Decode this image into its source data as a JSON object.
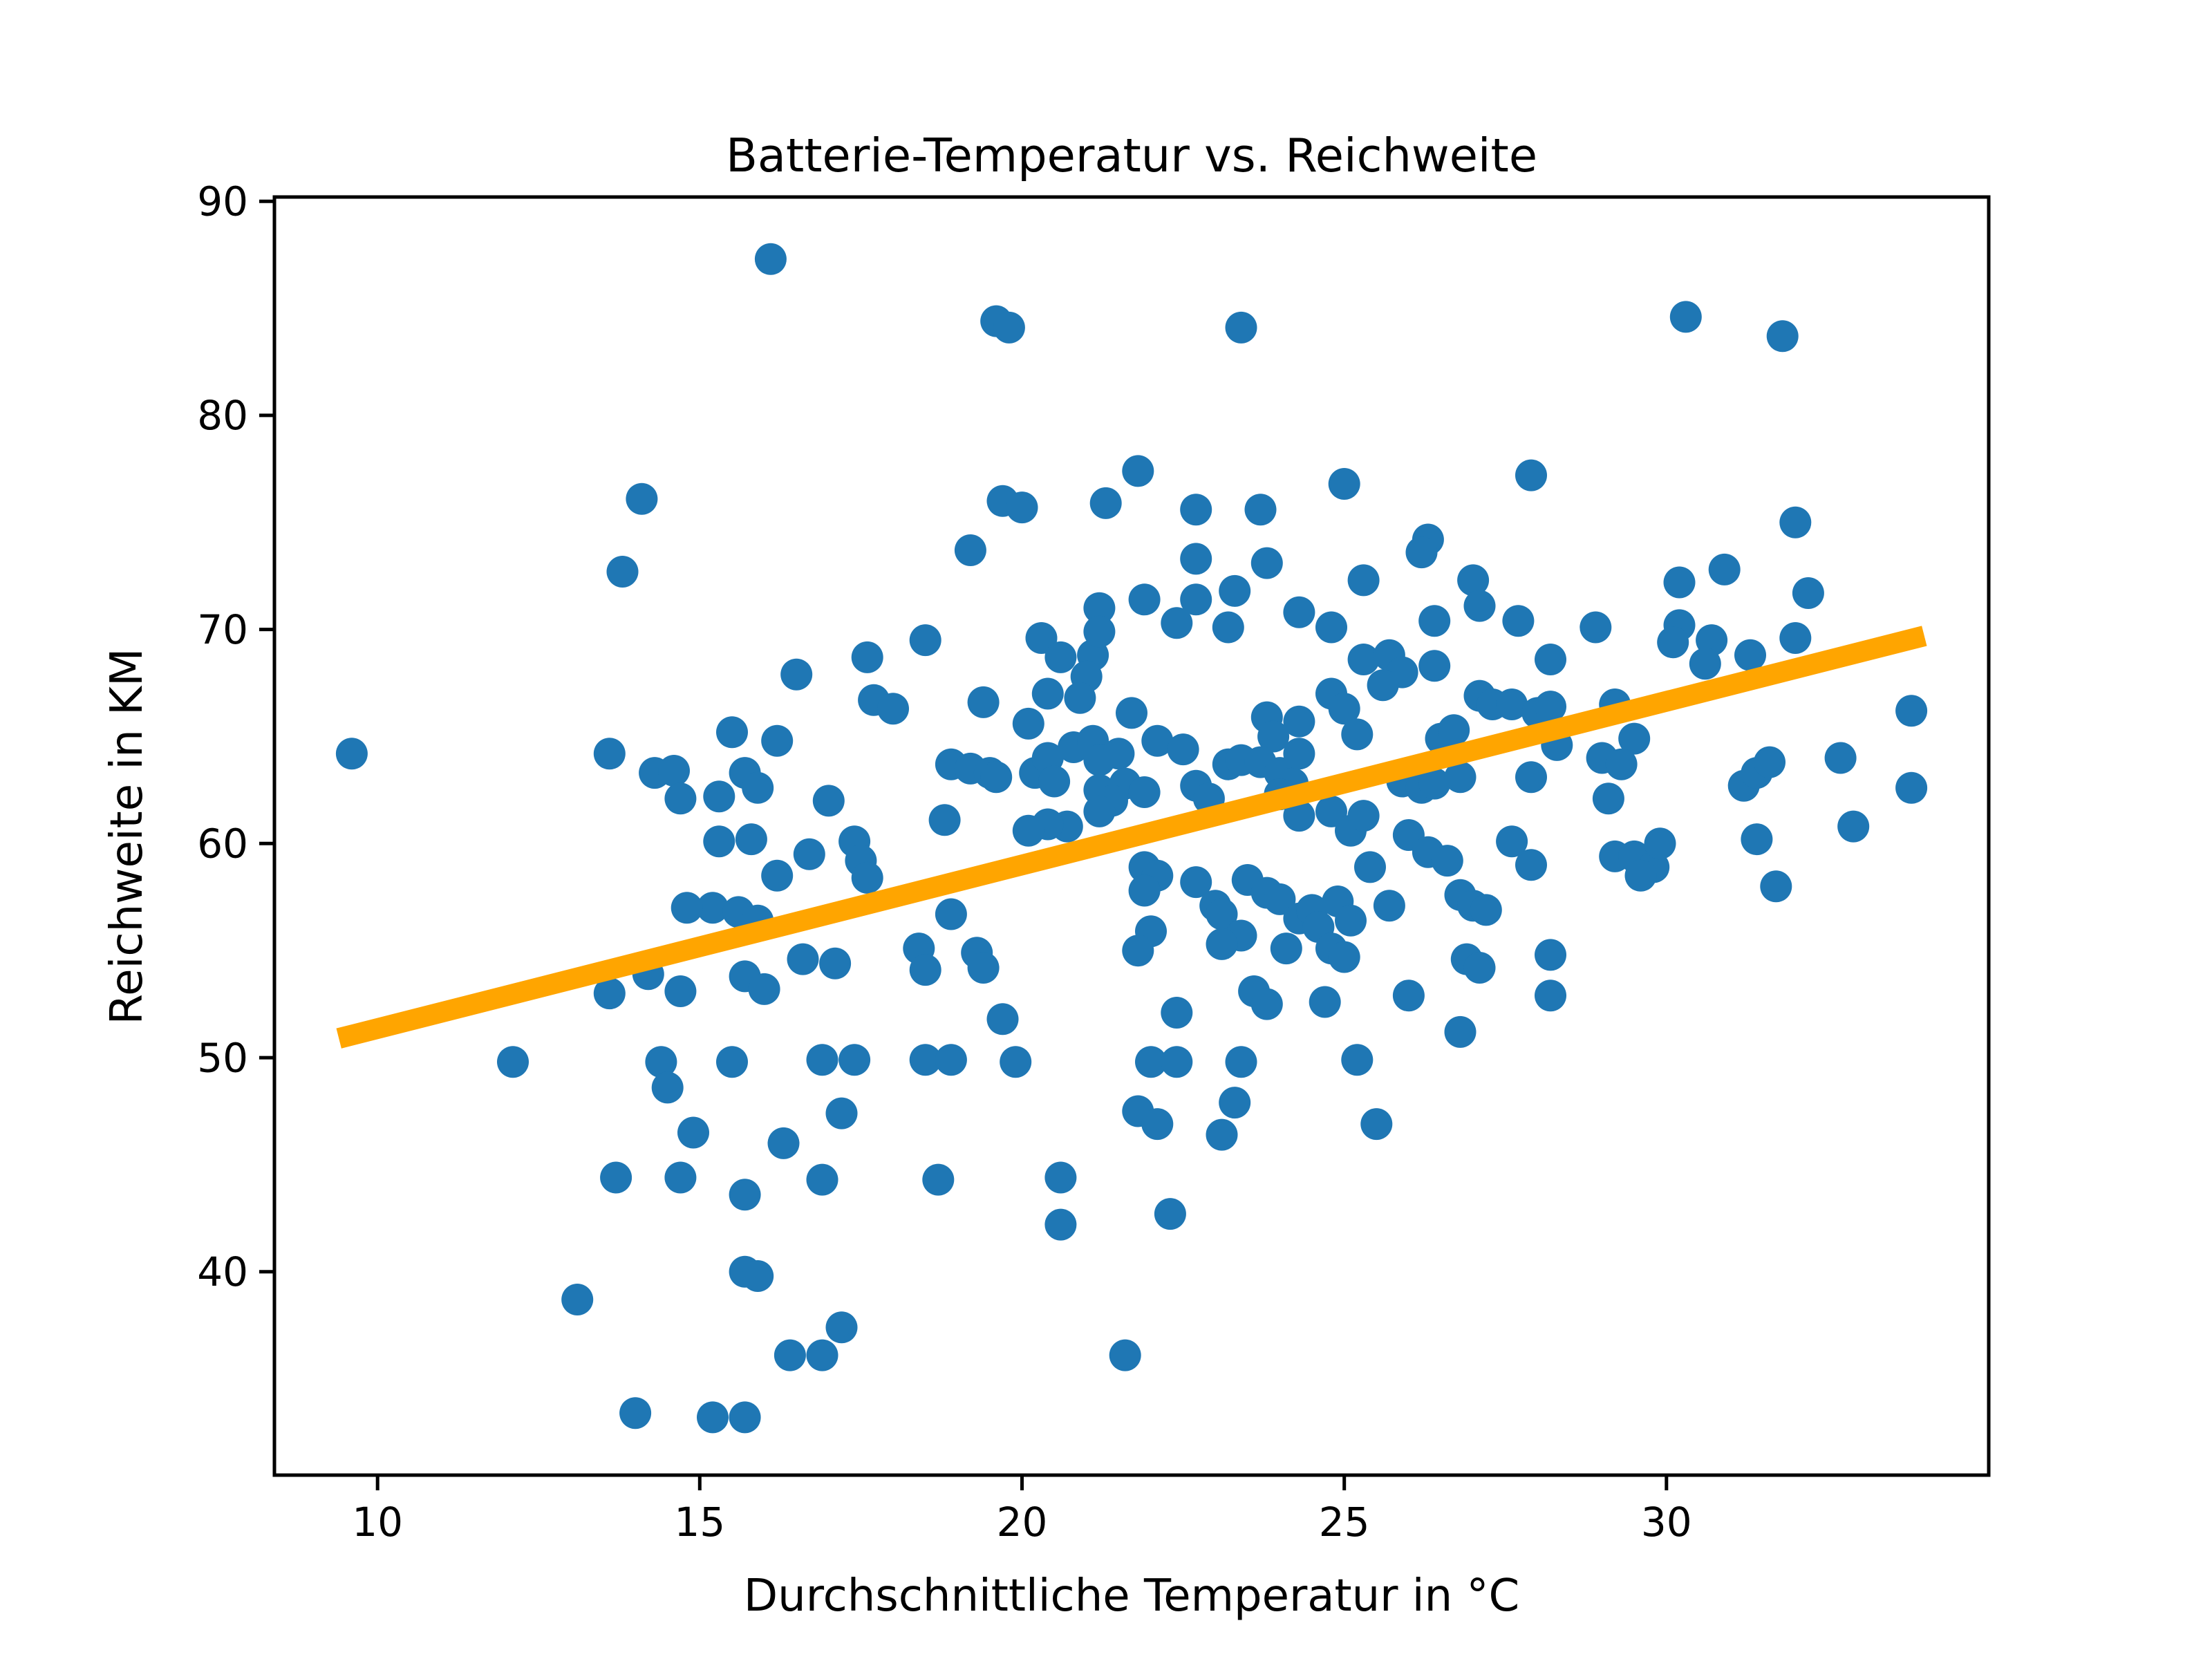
{
  "chart_data": {
    "type": "scatter",
    "title": "Batterie-Temperatur vs. Reichweite",
    "xlabel": "Durchschnittliche Temperatur in °C",
    "ylabel": "Reichweite in KM",
    "xlim": [
      8.4,
      35.0
    ],
    "ylim": [
      30.5,
      90.2
    ],
    "xticks": [
      10,
      15,
      20,
      25,
      30
    ],
    "yticks": [
      40,
      50,
      60,
      70,
      80,
      90
    ],
    "grid": false,
    "legend": "none",
    "marker_color": "#1f77b4",
    "trend_line": {
      "color": "#FFA500",
      "x1": 9.4,
      "y1": 50.9,
      "x2": 34.0,
      "y2": 69.7
    },
    "points": [
      [
        16.1,
        87.3
      ],
      [
        19.6,
        84.4
      ],
      [
        19.8,
        84.1
      ],
      [
        23.4,
        84.1
      ],
      [
        30.3,
        84.6
      ],
      [
        31.8,
        83.7
      ],
      [
        14.1,
        76.1
      ],
      [
        13.8,
        72.7
      ],
      [
        19.7,
        76.0
      ],
      [
        20.0,
        75.7
      ],
      [
        21.3,
        75.9
      ],
      [
        19.2,
        73.7
      ],
      [
        21.2,
        71.0
      ],
      [
        21.8,
        77.4
      ],
      [
        22.7,
        75.6
      ],
      [
        23.7,
        75.6
      ],
      [
        25.0,
        76.8
      ],
      [
        27.9,
        77.2
      ],
      [
        26.3,
        74.2
      ],
      [
        26.2,
        73.6
      ],
      [
        22.7,
        73.3
      ],
      [
        23.8,
        73.1
      ],
      [
        25.3,
        72.3
      ],
      [
        27.0,
        72.3
      ],
      [
        23.3,
        71.8
      ],
      [
        21.9,
        71.4
      ],
      [
        22.7,
        71.4
      ],
      [
        27.1,
        71.1
      ],
      [
        24.3,
        70.8
      ],
      [
        26.4,
        70.4
      ],
      [
        27.7,
        70.4
      ],
      [
        22.4,
        70.3
      ],
      [
        23.2,
        70.1
      ],
      [
        24.8,
        70.1
      ],
      [
        32.0,
        75.0
      ],
      [
        30.9,
        72.8
      ],
      [
        30.2,
        72.2
      ],
      [
        32.2,
        71.7
      ],
      [
        28.9,
        70.1
      ],
      [
        30.2,
        70.2
      ],
      [
        30.7,
        69.5
      ],
      [
        30.6,
        68.4
      ],
      [
        31.3,
        68.8
      ],
      [
        32.0,
        69.6
      ],
      [
        30.1,
        69.4
      ],
      [
        16.5,
        67.9
      ],
      [
        17.6,
        68.7
      ],
      [
        18.5,
        69.5
      ],
      [
        20.3,
        69.6
      ],
      [
        20.6,
        68.7
      ],
      [
        21.1,
        68.8
      ],
      [
        21.2,
        69.9
      ],
      [
        21.0,
        67.8
      ],
      [
        20.9,
        66.8
      ],
      [
        20.4,
        67.0
      ],
      [
        17.7,
        66.7
      ],
      [
        18.0,
        66.3
      ],
      [
        19.4,
        66.6
      ],
      [
        25.3,
        68.6
      ],
      [
        25.7,
        68.8
      ],
      [
        25.9,
        68.0
      ],
      [
        25.6,
        67.4
      ],
      [
        24.8,
        67.0
      ],
      [
        25.0,
        66.3
      ],
      [
        27.1,
        66.9
      ],
      [
        27.3,
        66.5
      ],
      [
        27.6,
        66.5
      ],
      [
        28.0,
        66.1
      ],
      [
        26.4,
        68.3
      ],
      [
        28.2,
        68.6
      ],
      [
        21.7,
        66.1
      ],
      [
        29.2,
        66.5
      ],
      [
        28.2,
        66.4
      ],
      [
        33.8,
        66.2
      ],
      [
        9.6,
        64.2
      ],
      [
        13.6,
        64.2
      ],
      [
        14.3,
        63.3
      ],
      [
        14.6,
        63.4
      ],
      [
        14.7,
        62.1
      ],
      [
        20.1,
        65.6
      ],
      [
        15.5,
        65.2
      ],
      [
        16.2,
        64.8
      ],
      [
        18.9,
        63.7
      ],
      [
        19.2,
        63.5
      ],
      [
        19.5,
        63.3
      ],
      [
        19.6,
        63.1
      ],
      [
        15.7,
        63.3
      ],
      [
        15.9,
        62.6
      ],
      [
        20.2,
        63.3
      ],
      [
        20.4,
        64.0
      ],
      [
        20.5,
        62.9
      ],
      [
        20.8,
        64.5
      ],
      [
        21.1,
        64.8
      ],
      [
        21.2,
        63.9
      ],
      [
        21.5,
        64.2
      ],
      [
        15.3,
        62.2
      ],
      [
        22.1,
        64.8
      ],
      [
        22.5,
        64.4
      ],
      [
        23.8,
        65.9
      ],
      [
        23.9,
        65.0
      ],
      [
        24.3,
        65.7
      ],
      [
        25.2,
        65.1
      ],
      [
        26.5,
        64.9
      ],
      [
        26.7,
        65.3
      ],
      [
        21.6,
        62.8
      ],
      [
        21.9,
        62.4
      ],
      [
        22.7,
        62.7
      ],
      [
        22.9,
        62.1
      ],
      [
        23.2,
        63.7
      ],
      [
        23.4,
        63.9
      ],
      [
        23.7,
        63.8
      ],
      [
        24.0,
        63.3
      ],
      [
        24.2,
        62.8
      ],
      [
        24.0,
        62.3
      ],
      [
        24.3,
        64.2
      ],
      [
        25.9,
        62.9
      ],
      [
        26.2,
        62.6
      ],
      [
        26.4,
        62.8
      ],
      [
        26.8,
        63.1
      ],
      [
        27.9,
        63.1
      ],
      [
        28.3,
        64.6
      ],
      [
        21.2,
        62.5
      ],
      [
        29.5,
        64.9
      ],
      [
        29.0,
        64.0
      ],
      [
        29.3,
        63.7
      ],
      [
        29.1,
        62.1
      ],
      [
        32.7,
        64.0
      ],
      [
        33.8,
        62.6
      ],
      [
        31.2,
        62.7
      ],
      [
        31.4,
        63.3
      ],
      [
        31.6,
        63.8
      ],
      [
        17.0,
        62.0
      ],
      [
        18.8,
        61.1
      ],
      [
        15.3,
        60.1
      ],
      [
        15.8,
        60.2
      ],
      [
        16.7,
        59.5
      ],
      [
        17.4,
        60.1
      ],
      [
        17.5,
        59.2
      ],
      [
        20.7,
        60.8
      ],
      [
        20.4,
        60.9
      ],
      [
        20.1,
        60.6
      ],
      [
        21.4,
        62.0
      ],
      [
        21.2,
        61.5
      ],
      [
        24.8,
        61.5
      ],
      [
        25.1,
        60.6
      ],
      [
        25.3,
        61.3
      ],
      [
        24.3,
        61.3
      ],
      [
        26.0,
        60.4
      ],
      [
        26.3,
        59.6
      ],
      [
        26.6,
        59.2
      ],
      [
        27.6,
        60.1
      ],
      [
        27.9,
        59.0
      ],
      [
        29.2,
        59.4
      ],
      [
        29.5,
        59.4
      ],
      [
        29.8,
        58.9
      ],
      [
        29.9,
        60.0
      ],
      [
        31.4,
        60.2
      ],
      [
        32.9,
        60.8
      ],
      [
        16.2,
        58.5
      ],
      [
        17.6,
        58.4
      ],
      [
        18.9,
        56.7
      ],
      [
        15.2,
        57.0
      ],
      [
        15.6,
        56.8
      ],
      [
        15.9,
        56.4
      ],
      [
        14.8,
        57.0
      ],
      [
        21.9,
        58.9
      ],
      [
        22.1,
        58.5
      ],
      [
        21.9,
        57.8
      ],
      [
        22.7,
        58.2
      ],
      [
        23.5,
        58.3
      ],
      [
        23.8,
        57.7
      ],
      [
        24.0,
        57.4
      ],
      [
        23.0,
        57.1
      ],
      [
        23.1,
        56.7
      ],
      [
        24.3,
        56.5
      ],
      [
        24.5,
        56.9
      ],
      [
        24.6,
        56.1
      ],
      [
        24.9,
        57.3
      ],
      [
        25.1,
        56.4
      ],
      [
        25.4,
        58.9
      ],
      [
        25.7,
        57.1
      ],
      [
        26.8,
        57.6
      ],
      [
        27.0,
        57.1
      ],
      [
        27.2,
        56.9
      ],
      [
        29.6,
        58.5
      ],
      [
        31.7,
        58.0
      ],
      [
        14.2,
        53.9
      ],
      [
        13.6,
        53.0
      ],
      [
        14.7,
        53.1
      ],
      [
        19.3,
        54.9
      ],
      [
        19.4,
        54.2
      ],
      [
        18.4,
        55.1
      ],
      [
        18.5,
        54.1
      ],
      [
        16.6,
        54.6
      ],
      [
        17.1,
        54.4
      ],
      [
        15.7,
        53.8
      ],
      [
        16.0,
        53.2
      ],
      [
        24.8,
        55.1
      ],
      [
        25.0,
        54.7
      ],
      [
        24.1,
        55.1
      ],
      [
        23.4,
        55.7
      ],
      [
        23.1,
        55.3
      ],
      [
        22.0,
        55.9
      ],
      [
        21.8,
        55.0
      ],
      [
        23.6,
        53.1
      ],
      [
        23.8,
        52.5
      ],
      [
        24.7,
        52.6
      ],
      [
        26.0,
        52.9
      ],
      [
        26.9,
        54.6
      ],
      [
        27.1,
        54.2
      ],
      [
        28.2,
        54.8
      ],
      [
        28.2,
        52.9
      ],
      [
        22.4,
        52.1
      ],
      [
        19.7,
        51.8
      ],
      [
        26.8,
        51.2
      ],
      [
        12.1,
        49.8
      ],
      [
        14.4,
        49.8
      ],
      [
        15.5,
        49.8
      ],
      [
        16.9,
        49.9
      ],
      [
        17.4,
        49.9
      ],
      [
        18.5,
        49.9
      ],
      [
        18.9,
        49.9
      ],
      [
        19.9,
        49.8
      ],
      [
        22.0,
        49.8
      ],
      [
        22.4,
        49.8
      ],
      [
        23.4,
        49.8
      ],
      [
        25.2,
        49.9
      ],
      [
        14.5,
        48.6
      ],
      [
        17.2,
        47.4
      ],
      [
        14.9,
        46.5
      ],
      [
        16.3,
        46.0
      ],
      [
        21.8,
        47.5
      ],
      [
        22.1,
        46.9
      ],
      [
        23.3,
        47.9
      ],
      [
        23.1,
        46.4
      ],
      [
        25.5,
        46.9
      ],
      [
        13.7,
        44.4
      ],
      [
        14.7,
        44.4
      ],
      [
        16.9,
        44.3
      ],
      [
        15.7,
        43.6
      ],
      [
        18.7,
        44.3
      ],
      [
        20.6,
        44.4
      ],
      [
        22.3,
        42.7
      ],
      [
        20.6,
        42.2
      ],
      [
        15.7,
        40.0
      ],
      [
        15.9,
        39.8
      ],
      [
        13.1,
        38.7
      ],
      [
        17.2,
        37.4
      ],
      [
        16.4,
        36.1
      ],
      [
        16.9,
        36.1
      ],
      [
        21.6,
        36.1
      ],
      [
        14.0,
        33.4
      ],
      [
        15.2,
        33.2
      ],
      [
        15.7,
        33.2
      ]
    ]
  }
}
